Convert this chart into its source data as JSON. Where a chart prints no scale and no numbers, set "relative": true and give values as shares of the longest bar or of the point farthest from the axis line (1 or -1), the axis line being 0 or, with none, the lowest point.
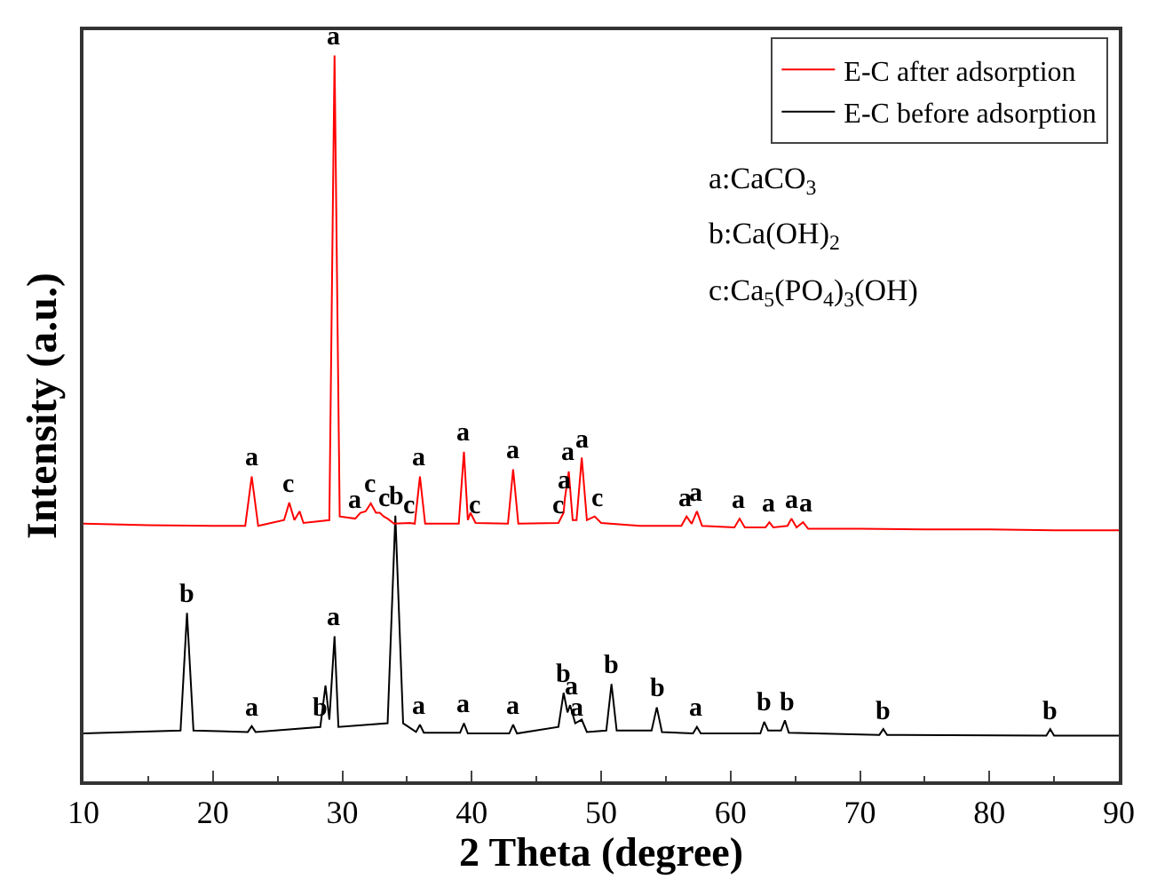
{
  "chart_data": {
    "type": "line",
    "relative": true,
    "xlabel": "2 Theta (degree)",
    "ylabel": "Intensity (a.u.)",
    "xlim": [
      10,
      90
    ],
    "xticks": [
      10,
      20,
      30,
      40,
      50,
      60,
      70,
      80,
      90
    ],
    "tick_labels": "x",
    "grid": false,
    "legend": "top right",
    "marker": "none",
    "line_style": "solid",
    "series": [
      {
        "name": "E-C after adsorption",
        "color": "#ff0000",
        "x": [
          10,
          15,
          20,
          22.5,
          23,
          23.5,
          25.5,
          25.9,
          26.3,
          26.7,
          27,
          29,
          29.4,
          29.8,
          31,
          31.4,
          31.8,
          32.2,
          32.6,
          32.9,
          33.2,
          33.5,
          34,
          35.2,
          35.6,
          36,
          36.4,
          39,
          39.4,
          39.7,
          39.9,
          40.3,
          42.8,
          43.2,
          43.6,
          46.7,
          47.1,
          47.2,
          47.5,
          47.8,
          48.1,
          48.5,
          48.9,
          49.5,
          50,
          53,
          56.2,
          56.6,
          57,
          57.4,
          57.8,
          60.3,
          60.7,
          61.1,
          62.7,
          63,
          63.3,
          64.4,
          64.7,
          65.1,
          65.6,
          66,
          70,
          75,
          80,
          85,
          90
        ],
        "values": [
          0.355,
          0.353,
          0.352,
          0.352,
          0.42,
          0.352,
          0.36,
          0.384,
          0.36,
          0.372,
          0.356,
          0.36,
          1.0,
          0.365,
          0.362,
          0.37,
          0.372,
          0.383,
          0.37,
          0.37,
          0.365,
          0.362,
          0.355,
          0.356,
          0.355,
          0.42,
          0.355,
          0.355,
          0.454,
          0.36,
          0.37,
          0.356,
          0.355,
          0.43,
          0.355,
          0.356,
          0.37,
          0.39,
          0.427,
          0.36,
          0.36,
          0.446,
          0.36,
          0.365,
          0.356,
          0.352,
          0.352,
          0.365,
          0.355,
          0.372,
          0.352,
          0.35,
          0.362,
          0.35,
          0.35,
          0.357,
          0.35,
          0.352,
          0.362,
          0.35,
          0.357,
          0.348,
          0.348,
          0.347,
          0.347,
          0.346,
          0.346
        ]
      },
      {
        "name": "E-C before adsorption",
        "color": "#000000",
        "x": [
          10,
          17.5,
          18,
          18.5,
          22.7,
          23,
          23.3,
          28.3,
          28.7,
          29.0,
          29.4,
          29.7,
          33.5,
          34.1,
          34.7,
          35.7,
          36,
          36.3,
          39.1,
          39.4,
          39.7,
          42.9,
          43.2,
          43.5,
          46.7,
          47.1,
          47.4,
          47.6,
          48.0,
          48.5,
          48.9,
          50.4,
          50.8,
          51.2,
          53.9,
          54.3,
          54.7,
          57.1,
          57.4,
          57.7,
          62.3,
          62.6,
          62.9,
          63.9,
          64.2,
          64.5,
          71.5,
          71.8,
          72.1,
          84.4,
          84.7,
          85.0,
          90
        ],
        "values": [
          0.066,
          0.07,
          0.232,
          0.07,
          0.068,
          0.076,
          0.068,
          0.075,
          0.132,
          0.085,
          0.2,
          0.075,
          0.08,
          0.366,
          0.08,
          0.068,
          0.078,
          0.067,
          0.067,
          0.08,
          0.066,
          0.066,
          0.078,
          0.066,
          0.075,
          0.122,
          0.095,
          0.105,
          0.08,
          0.085,
          0.068,
          0.07,
          0.134,
          0.07,
          0.07,
          0.102,
          0.068,
          0.066,
          0.075,
          0.066,
          0.066,
          0.082,
          0.07,
          0.07,
          0.084,
          0.067,
          0.064,
          0.072,
          0.064,
          0.063,
          0.072,
          0.063,
          0.063
        ]
      }
    ],
    "annotations": [
      "a:CaCO$_{3}$",
      "b:Ca(OH)$_{2}$",
      "c:Ca$_{5}$(PO$_{4}$)$_{3}$(OH)",
      {
        "text": "a",
        "x": 23,
        "y": 0.42
      },
      {
        "text": "c",
        "x": 25.9,
        "y": 0.384
      },
      {
        "text": "a",
        "x": 29.4,
        "y": 1.0
      },
      {
        "text": "a",
        "x": 31,
        "y": 0.362
      },
      {
        "text": "c",
        "x": 32.2,
        "y": 0.383
      },
      {
        "text": "c",
        "x": 33.2,
        "y": 0.365
      },
      {
        "text": "c",
        "x": 35.2,
        "y": 0.356
      },
      {
        "text": "a",
        "x": 36,
        "y": 0.42
      },
      {
        "text": "a",
        "x": 39.4,
        "y": 0.454
      },
      {
        "text": "c",
        "x": 40.3,
        "y": 0.356
      },
      {
        "text": "a",
        "x": 43.2,
        "y": 0.43
      },
      {
        "text": "c",
        "x": 46.7,
        "y": 0.356
      },
      {
        "text": "a",
        "x": 47.2,
        "y": 0.39
      },
      {
        "text": "a",
        "x": 47.5,
        "y": 0.427
      },
      {
        "text": "a",
        "x": 48.5,
        "y": 0.446
      },
      {
        "text": "c",
        "x": 49.7,
        "y": 0.365
      },
      {
        "text": "a",
        "x": 56.5,
        "y": 0.365
      },
      {
        "text": "a",
        "x": 57.4,
        "y": 0.372
      },
      {
        "text": "a",
        "x": 60.7,
        "y": 0.362
      },
      {
        "text": "a",
        "x": 63,
        "y": 0.357
      },
      {
        "text": "a",
        "x": 64.7,
        "y": 0.362
      },
      {
        "text": "a",
        "x": 65.9,
        "y": 0.357
      },
      {
        "text": "b",
        "x": 18,
        "y": 0.232
      },
      {
        "text": "a",
        "x": 23,
        "y": 0.076
      },
      {
        "text": "b",
        "x": 28.3,
        "y": 0.075
      },
      {
        "text": "a",
        "x": 29.4,
        "y": 0.2
      },
      {
        "text": "b",
        "x": 34.1,
        "y": 0.366
      },
      {
        "text": "a",
        "x": 36,
        "y": 0.078
      },
      {
        "text": "a",
        "x": 39.4,
        "y": 0.08
      },
      {
        "text": "a",
        "x": 43.2,
        "y": 0.078
      },
      {
        "text": "b",
        "x": 47,
        "y": 0.122
      },
      {
        "text": "a",
        "x": 47.7,
        "y": 0.105
      },
      {
        "text": "a",
        "x": 48.1,
        "y": 0.075
      },
      {
        "text": "b",
        "x": 50.8,
        "y": 0.134
      },
      {
        "text": "b",
        "x": 54.3,
        "y": 0.102
      },
      {
        "text": "a",
        "x": 57.4,
        "y": 0.075
      },
      {
        "text": "b",
        "x": 62.6,
        "y": 0.082
      },
      {
        "text": "b",
        "x": 64.3,
        "y": 0.084
      },
      {
        "text": "b",
        "x": 71.8,
        "y": 0.072
      },
      {
        "text": "b",
        "x": 84.7,
        "y": 0.072
      }
    ]
  }
}
